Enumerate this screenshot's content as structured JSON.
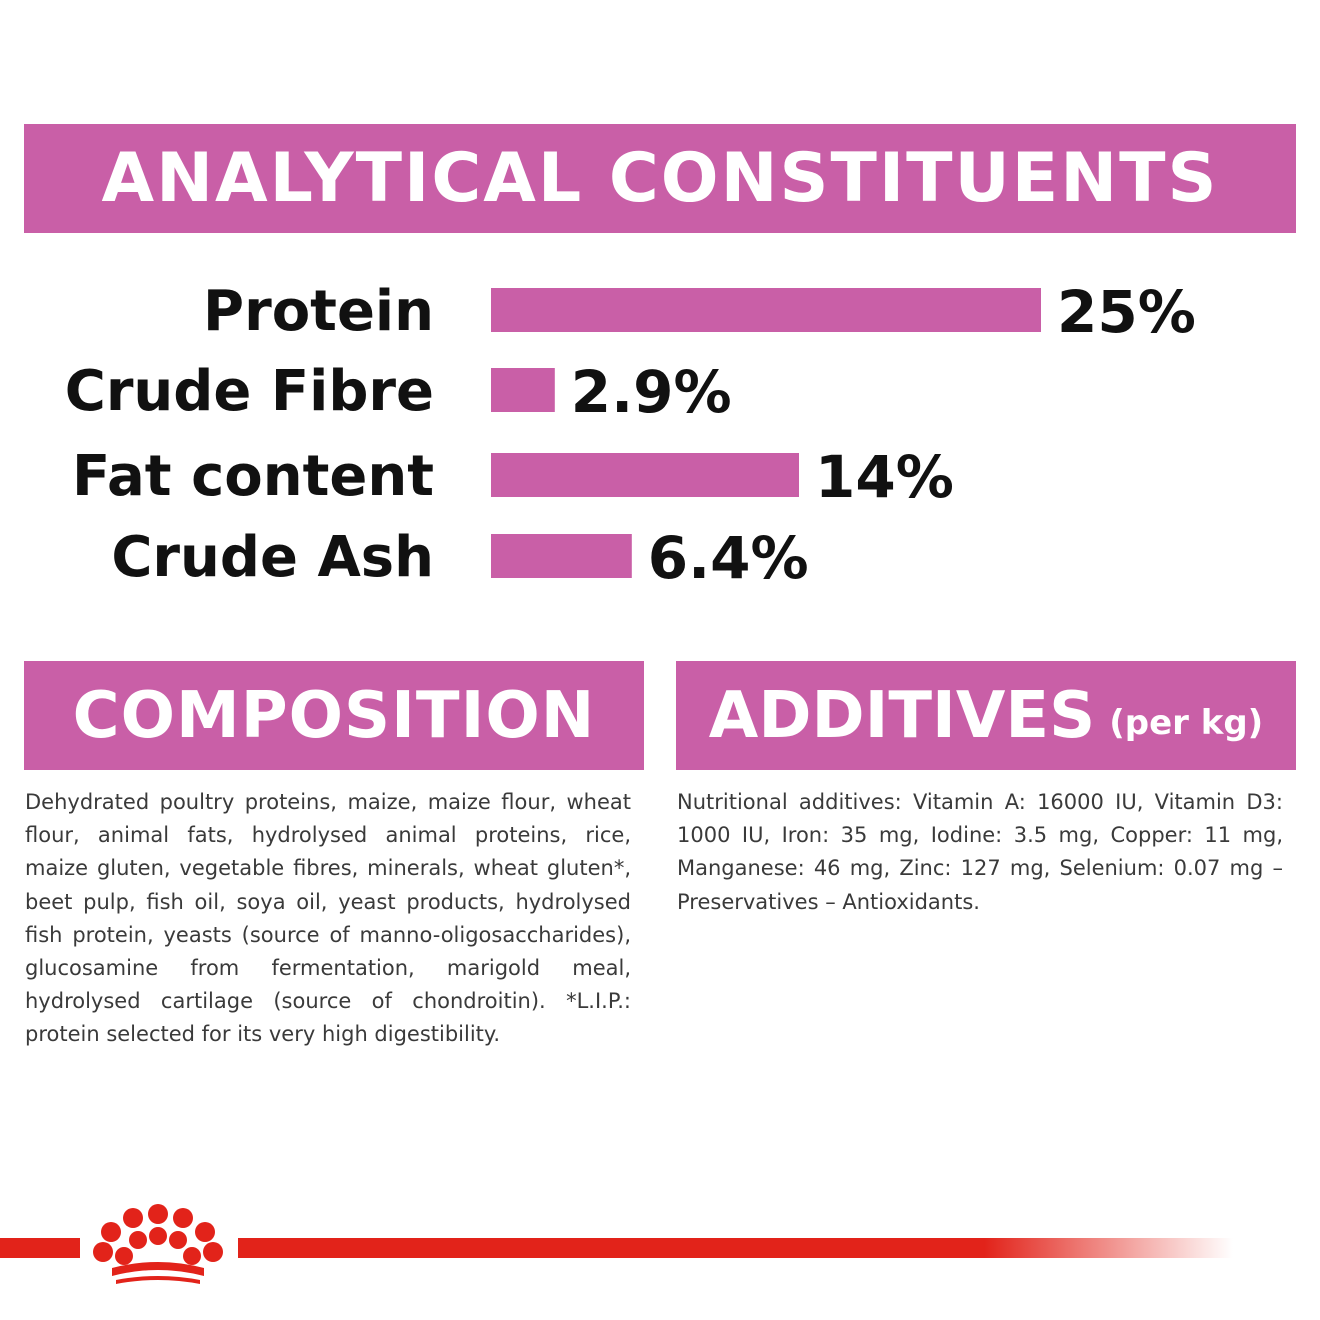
{
  "sections": {
    "analytical": {
      "title": "ANALYTICAL CONSTITUENTS"
    },
    "composition": {
      "title": "COMPOSITION",
      "text": "Dehydrated poultry proteins, maize, maize flour, wheat flour, animal fats, hydrolysed animal proteins, rice, maize gluten, vegetable fibres, minerals, wheat gluten*, beet pulp, fish oil, soya oil, yeast products, hydrolysed fish protein, yeasts (source of manno-oligosaccharides), glucosamine from fermentation, marigold meal, hydrolysed cartilage (source of chondroitin). *L.I.P.: protein selected for its very high digestibility."
    },
    "additives": {
      "title": "ADDITIVES",
      "title_suffix": "(per kg)",
      "text": "Nutritional additives: Vitamin A: 16000 IU, Vitamin D3: 1000 IU, Iron: 35 mg, Iodine: 3.5 mg, Copper: 11 mg, Manganese: 46 mg, Zinc: 127 mg, Selenium: 0.07 mg – Preservatives – Antioxidants."
    }
  },
  "chart_data": {
    "type": "bar",
    "orientation": "horizontal",
    "categories": [
      "Protein",
      "Crude Fibre",
      "Fat content",
      "Crude Ash"
    ],
    "values": [
      25,
      2.9,
      14,
      6.4
    ],
    "value_labels": [
      "25%",
      "2.9%",
      "14%",
      "6.4%"
    ],
    "unit": "%",
    "xlim": [
      0,
      25
    ],
    "color": "#c95fa7",
    "grid": false,
    "legend": "none"
  },
  "colors": {
    "accent": "#c95fa7",
    "brand_red": "#e2231a"
  },
  "footer": {
    "logo_icon": "crown-icon"
  }
}
